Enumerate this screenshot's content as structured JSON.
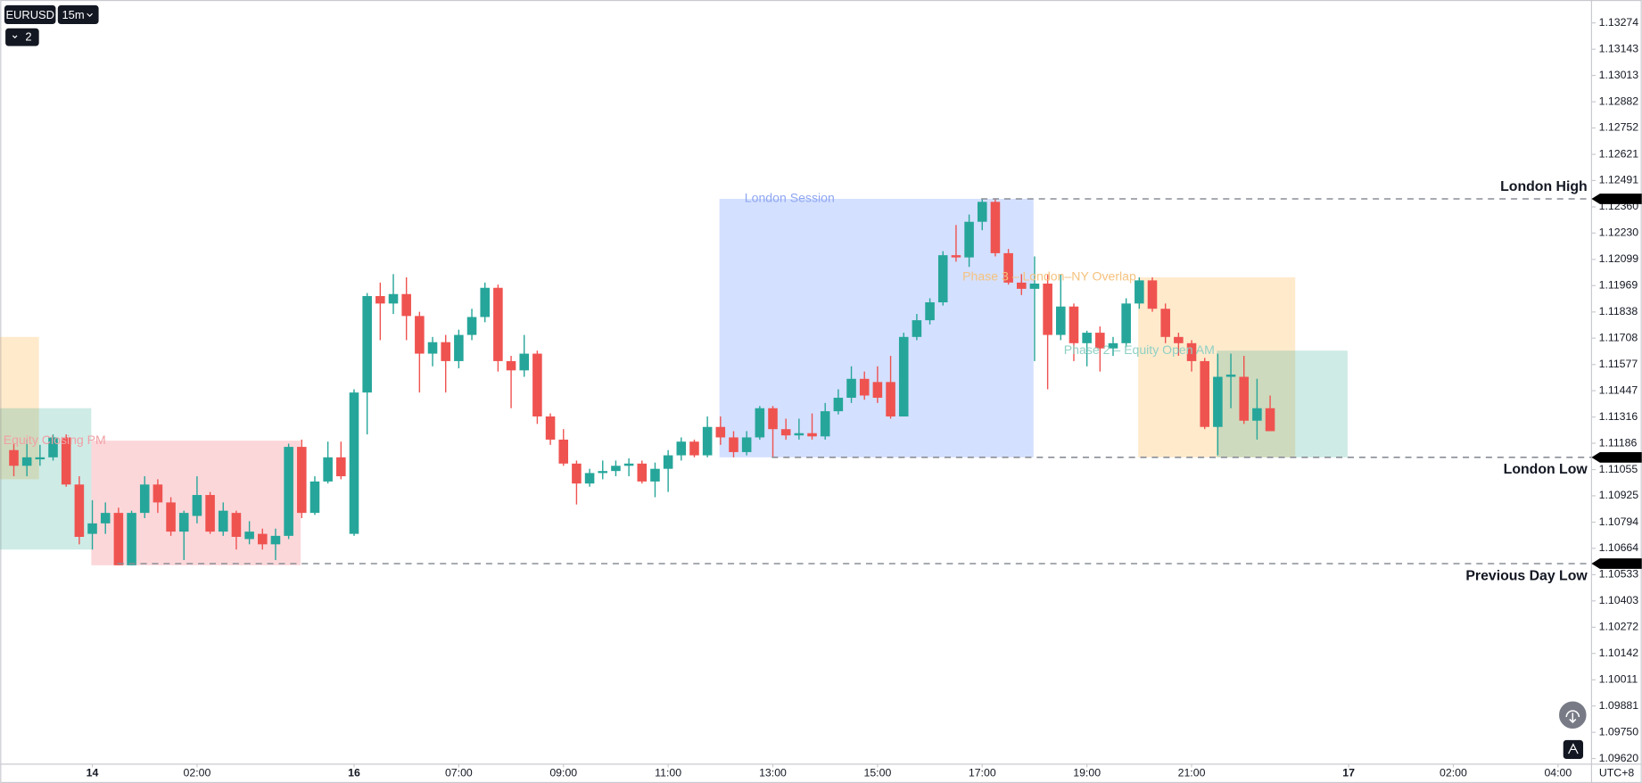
{
  "toolbar": {
    "symbol": "EURUSD",
    "interval": "15m",
    "indicator_count": "2"
  },
  "chart_data": {
    "type": "candlestick",
    "timezone": "UTC+8",
    "up_color": "#26a69a",
    "down_color": "#ef5350",
    "xlim": [
      -7.04,
      114.56
    ],
    "ylim": [
      1.09592,
      1.13372
    ],
    "xticks": [
      {
        "value": 0,
        "label": "14"
      },
      {
        "value": 8,
        "label": "02:00"
      },
      {
        "value": 20,
        "label": "16"
      },
      {
        "value": 28,
        "label": "07:00"
      },
      {
        "value": 36,
        "label": "09:00"
      },
      {
        "value": 44,
        "label": "11:00"
      },
      {
        "value": 52,
        "label": "13:00"
      },
      {
        "value": 60,
        "label": "15:00"
      },
      {
        "value": 68,
        "label": "17:00"
      },
      {
        "value": 76,
        "label": "19:00"
      },
      {
        "value": 84,
        "label": "21:00"
      },
      {
        "value": 96,
        "label": "17"
      },
      {
        "value": 104,
        "label": "02:00"
      },
      {
        "value": 112,
        "label": "04:00"
      }
    ],
    "yticks": [
      1.13274,
      1.13143,
      1.13013,
      1.12882,
      1.12752,
      1.12621,
      1.12491,
      {
        "value": 1.1236,
        "label": "1.12360"
      },
      {
        "value": 1.1223,
        "label": "1.12230"
      },
      1.12099,
      1.11969,
      1.11838,
      1.11708,
      1.11577,
      1.11447,
      1.11316,
      1.11186,
      1.11055,
      1.10925,
      1.10794,
      1.10664,
      1.10533,
      1.10403,
      1.10272,
      1.10142,
      1.10011,
      1.09881,
      {
        "value": 1.0975,
        "label": "1.09750"
      },
      {
        "value": 1.0962,
        "label": "1.09620"
      }
    ],
    "x": [
      -6,
      -5,
      -4,
      -3,
      -2,
      -1,
      0,
      1,
      2,
      3,
      4,
      5,
      6,
      7,
      8,
      9,
      10,
      11,
      12,
      13,
      14,
      15,
      16,
      17,
      18,
      19,
      20,
      21,
      22,
      23,
      24,
      25,
      26,
      27,
      28,
      29,
      30,
      31,
      32,
      33,
      34,
      35,
      36,
      37,
      38,
      39,
      40,
      41,
      42,
      43,
      44,
      45,
      46,
      47,
      48,
      49,
      50,
      51,
      52,
      53,
      54,
      55,
      56,
      57,
      58,
      59,
      60,
      61,
      62,
      63,
      64,
      65,
      66,
      67,
      68,
      69,
      70,
      71,
      72,
      73,
      74,
      75,
      76,
      77,
      78,
      79,
      80,
      81,
      82,
      83,
      84,
      85,
      86,
      87,
      88,
      89,
      90
    ],
    "open": [
      1.11152,
      1.11074,
      1.11106,
      1.11116,
      1.11215,
      1.10981,
      1.10736,
      1.10788,
      1.1084,
      1.1058,
      1.1084,
      1.10981,
      1.10892,
      1.10747,
      1.10825,
      1.10929,
      1.10747,
      1.1084,
      1.1071,
      1.10736,
      1.10684,
      1.10726,
      1.11168,
      1.1084,
      1.10996,
      1.11116,
      1.10736,
      1.11438,
      1.11917,
      1.1188,
      1.11927,
      1.11818,
      1.11631,
      1.11688,
      1.11594,
      1.11724,
      1.11813,
      1.11958,
      1.11594,
      1.11548,
      1.11631,
      1.11319,
      1.11204,
      1.11085,
      1.10986,
      1.11038,
      1.11048,
      1.11074,
      1.11085,
      1.10996,
      1.11059,
      1.11126,
      1.11194,
      1.11126,
      1.11267,
      1.11215,
      1.11142,
      1.11215,
      1.1136,
      1.11256,
      1.11225,
      1.11236,
      1.1122,
      1.11345,
      1.11412,
      1.11506,
      1.1149,
      1.1149,
      1.11319,
      1.11714,
      1.11797,
      1.11886,
      1.1212,
      1.12109,
      1.12286,
      1.12385,
      1.1213,
      1.11984,
      1.11953,
      1.11979,
      1.11724,
      1.11865,
      1.11683,
      1.11735,
      1.11657,
      1.11683,
      1.1188,
      1.11995,
      1.11854,
      1.11714,
      1.11683,
      1.11594,
      1.11267,
      1.11516,
      1.11516,
      1.11298,
      1.1136
    ],
    "high": [
      1.11184,
      1.11204,
      1.11178,
      1.1123,
      1.1123,
      1.11022,
      1.10903,
      1.10892,
      1.10866,
      1.10851,
      1.11022,
      1.11007,
      1.10918,
      1.10851,
      1.11022,
      1.10944,
      1.10892,
      1.10851,
      1.10799,
      1.10762,
      1.10762,
      1.11184,
      1.11204,
      1.11022,
      1.11194,
      1.11194,
      1.11454,
      1.11932,
      1.11984,
      1.12026,
      1.1201,
      1.11839,
      1.11714,
      1.11724,
      1.1175,
      1.11854,
      1.11984,
      1.11974,
      1.1162,
      1.11724,
      1.11646,
      1.11334,
      1.11256,
      1.111,
      1.11059,
      1.111,
      1.111,
      1.11111,
      1.111,
      1.1109,
      1.11152,
      1.11215,
      1.11204,
      1.11319,
      1.11319,
      1.11246,
      1.11246,
      1.11371,
      1.11371,
      1.11308,
      1.11308,
      1.11334,
      1.11386,
      1.11454,
      1.11568,
      1.11542,
      1.11568,
      1.1162,
      1.11735,
      1.11828,
      1.11906,
      1.1214,
      1.1227,
      1.12322,
      1.124,
      1.124,
      1.12151,
      1.12026,
      1.12114,
      1.12026,
      1.12026,
      1.1188,
      1.11745,
      1.11766,
      1.11714,
      1.11906,
      1.1201,
      1.1201,
      1.1188,
      1.11735,
      1.11698,
      1.1161,
      1.11631,
      1.11631,
      1.1162,
      1.11506,
      1.11423
    ],
    "low": [
      1.11022,
      1.11022,
      1.11074,
      1.111,
      1.1097,
      1.10684,
      1.10658,
      1.10736,
      1.1058,
      1.1058,
      1.10814,
      1.1084,
      1.10726,
      1.10606,
      1.10788,
      1.10736,
      1.10726,
      1.10658,
      1.10684,
      1.10658,
      1.10606,
      1.1071,
      1.10814,
      1.1083,
      1.10986,
      1.11007,
      1.10726,
      1.1123,
      1.11698,
      1.11828,
      1.11698,
      1.11438,
      1.11568,
      1.11438,
      1.11558,
      1.11698,
      1.11787,
      1.11542,
      1.1136,
      1.11516,
      1.11282,
      1.11178,
      1.11074,
      1.10882,
      1.1097,
      1.11007,
      1.11022,
      1.11022,
      1.10986,
      1.10918,
      1.10944,
      1.111,
      1.11116,
      1.11116,
      1.11178,
      1.11116,
      1.11126,
      1.11204,
      1.11116,
      1.11204,
      1.11204,
      1.11204,
      1.11204,
      1.11329,
      1.11386,
      1.11402,
      1.11386,
      1.11308,
      1.11319,
      1.11698,
      1.11776,
      1.1187,
      1.12088,
      1.12062,
      1.12244,
      1.12114,
      1.11974,
      1.11922,
      1.11594,
      1.11454,
      1.11698,
      1.11594,
      1.11568,
      1.11542,
      1.1162,
      1.11662,
      1.11854,
      1.11839,
      1.11683,
      1.1162,
      1.11542,
      1.11256,
      1.11126,
      1.1136,
      1.11282,
      1.11204,
      1.11246
    ],
    "close": [
      1.11074,
      1.11116,
      1.11116,
      1.11215,
      1.10981,
      1.10721,
      1.10788,
      1.1084,
      1.1058,
      1.1084,
      1.10981,
      1.10892,
      1.10747,
      1.1084,
      1.10929,
      1.10747,
      1.10851,
      1.10721,
      1.10747,
      1.10684,
      1.10726,
      1.11168,
      1.1084,
      1.10996,
      1.11116,
      1.11022,
      1.11438,
      1.11917,
      1.1188,
      1.11927,
      1.11818,
      1.11631,
      1.11688,
      1.11594,
      1.11724,
      1.11813,
      1.11958,
      1.11594,
      1.11548,
      1.11631,
      1.11319,
      1.11204,
      1.11085,
      1.10986,
      1.11038,
      1.11048,
      1.11074,
      1.11085,
      1.10996,
      1.11059,
      1.11126,
      1.11194,
      1.11126,
      1.11267,
      1.11215,
      1.11142,
      1.11215,
      1.1136,
      1.11256,
      1.11225,
      1.11236,
      1.1122,
      1.11345,
      1.11412,
      1.11506,
      1.11423,
      1.11412,
      1.11319,
      1.11714,
      1.11797,
      1.11886,
      1.1212,
      1.12109,
      1.12286,
      1.12385,
      1.1213,
      1.11984,
      1.11953,
      1.11979,
      1.11724,
      1.11865,
      1.11683,
      1.11735,
      1.11657,
      1.11683,
      1.1188,
      1.11995,
      1.11854,
      1.11714,
      1.11683,
      1.11594,
      1.11267,
      1.11516,
      1.11527,
      1.11298,
      1.1136,
      1.11246
    ],
    "zones": [
      {
        "x": [
          -7.04,
          -4.08
        ],
        "y": [
          1.11007,
          1.11714
        ],
        "color": "#ff980033"
      },
      {
        "x": [
          -7.04,
          -0.08
        ],
        "y": [
          1.10658,
          1.1136
        ],
        "color": "#08998133"
      },
      {
        "x": [
          -0.08,
          15.92
        ],
        "y": [
          1.1058,
          1.11199
        ],
        "color": "#f2364533",
        "label": "Equity Closing PM",
        "label_color": "#f0a0a5",
        "label_side": "outside"
      },
      {
        "x": [
          47.92,
          71.92
        ],
        "y": [
          1.11116,
          1.124
        ],
        "color": "#2962ff33",
        "label": "London Session",
        "label_color": "#8ea6f2",
        "label_side": "inside"
      },
      {
        "x": [
          79.92,
          91.92
        ],
        "y": [
          1.11116,
          1.1201
        ],
        "color": "#ff980033",
        "label": "Phase 3 – London–NY Overlap",
        "label_color": "#f5c27e",
        "label_side": "outside"
      },
      {
        "x": [
          85.92,
          95.92
        ],
        "y": [
          1.11116,
          1.11646
        ],
        "color": "#08998133",
        "label": "Phase 2 – Equity Open AM",
        "label_color": "#8fd0c4",
        "label_side": "outside"
      }
    ],
    "levels": [
      {
        "label": "London High",
        "value": 1.124,
        "start": 67.92,
        "label_position": "above"
      },
      {
        "label": "London Low",
        "value": 1.11116,
        "start": 51.92,
        "label_position": "below"
      },
      {
        "label": "Previous Day Low",
        "value": 1.10588,
        "start": 1.92,
        "label_position": "below"
      }
    ]
  }
}
